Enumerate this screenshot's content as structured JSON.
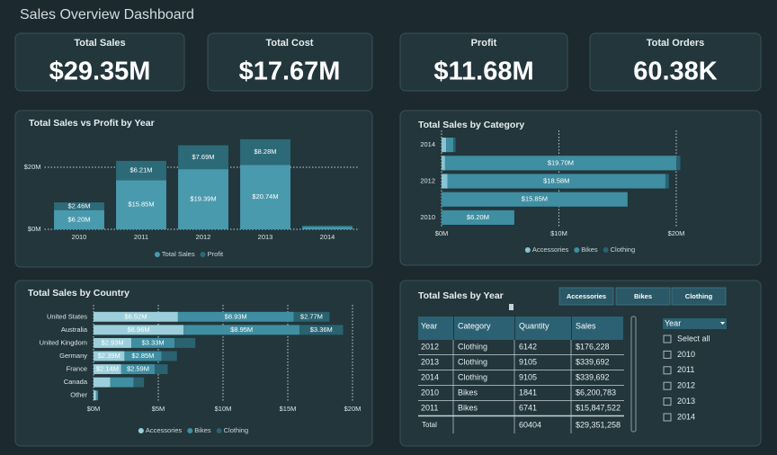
{
  "header": {
    "title": "Sales Overview Dashboard"
  },
  "kpis": [
    {
      "label": "Total Sales",
      "value": "$29.35M"
    },
    {
      "label": "Total Cost",
      "value": "$17.67M"
    },
    {
      "label": "Profit",
      "value": "$11.68M"
    },
    {
      "label": "Total Orders",
      "value": "60.38K"
    }
  ],
  "chart_data": [
    {
      "type": "bar",
      "title": "Total Sales vs Profit by Year",
      "categories": [
        "2010",
        "2011",
        "2012",
        "2013",
        "2014"
      ],
      "series": [
        {
          "name": "Total Sales",
          "color": "#4a9aae",
          "values": [
            6.2,
            15.85,
            19.39,
            20.74,
            0.8
          ],
          "value_labels": [
            "$6.20M",
            "$15.85M",
            "$19.39M",
            "$20.74M",
            null
          ]
        },
        {
          "name": "Profit",
          "color": "#2d6a78",
          "values": [
            2.46,
            6.21,
            7.69,
            8.28,
            0.4
          ],
          "value_labels": [
            "$2.46M",
            "$6.21M",
            "$7.69M",
            "$8.28M",
            null
          ]
        }
      ],
      "ylim": [
        0,
        30
      ],
      "yticks": [
        {
          "value": 0,
          "label": "$0M"
        },
        {
          "value": 20,
          "label": "$20M"
        }
      ],
      "stacked": true,
      "grid": true,
      "legend": "bottom"
    },
    {
      "type": "barh",
      "title": "Total Sales by Category",
      "categories": [
        "2014",
        null,
        "2012",
        null,
        "2010"
      ],
      "series": [
        {
          "name": "Accessories",
          "color": "#86c5d3",
          "values": [
            0.4,
            0.3,
            0.5,
            0,
            0
          ]
        },
        {
          "name": "Bikes",
          "color": "#3f8ea1",
          "values": [
            0.6,
            19.7,
            18.58,
            15.85,
            6.2
          ],
          "value_labels": [
            null,
            "$19.70M",
            "$18.58M",
            "$15.85M",
            "$6.20M"
          ]
        },
        {
          "name": "Clothing",
          "color": "#2a6270",
          "values": [
            0.2,
            0.35,
            0.3,
            0,
            0
          ]
        }
      ],
      "xlim": [
        0,
        21
      ],
      "xticks": [
        {
          "value": 0,
          "label": "$0M"
        },
        {
          "value": 10,
          "label": "$10M"
        },
        {
          "value": 20,
          "label": "$20M"
        }
      ],
      "stacked": true,
      "grid": true,
      "legend": "bottom"
    },
    {
      "type": "barh",
      "title": "Total Sales by Country",
      "categories": [
        "United States",
        "Australia",
        "United Kingdom",
        "Germany",
        "France",
        "Canada",
        "Other"
      ],
      "series": [
        {
          "name": "Accessories",
          "color": "#9ccfdb",
          "values": [
            6.52,
            6.96,
            2.93,
            2.39,
            2.14,
            1.3,
            0.2
          ],
          "value_labels": [
            "$6.52M",
            "$6.96M",
            "$2.93M",
            "$2.39M",
            "$2.14M",
            null,
            null
          ]
        },
        {
          "name": "Bikes",
          "color": "#3f8ea1",
          "values": [
            8.93,
            8.95,
            3.33,
            2.85,
            2.59,
            1.8,
            0.15
          ],
          "value_labels": [
            "$8.93M",
            "$8.95M",
            "$3.33M",
            "$2.85M",
            "$2.59M",
            null,
            null
          ]
        },
        {
          "name": "Clothing",
          "color": "#2a6270",
          "values": [
            2.77,
            3.36,
            1.6,
            1.2,
            1.0,
            0.8,
            0
          ],
          "value_labels": [
            "$2.77M",
            "$3.36M",
            null,
            null,
            null,
            null,
            null
          ]
        }
      ],
      "xlim": [
        0,
        20
      ],
      "xticks": [
        {
          "value": 0,
          "label": "$0M"
        },
        {
          "value": 5,
          "label": "$5M"
        },
        {
          "value": 10,
          "label": "$10M"
        },
        {
          "value": 15,
          "label": "$15M"
        },
        {
          "value": 20,
          "label": "$20M"
        }
      ],
      "stacked": true,
      "grid": true,
      "legend": "bottom"
    }
  ],
  "table": {
    "title": "Total Sales by Year",
    "buttons": [
      "Accessories",
      "Bikes",
      "Clothing"
    ],
    "columns": [
      "Year",
      "Category",
      "Quantity",
      "Sales"
    ],
    "rows": [
      [
        "2012",
        "Clothing",
        "6142",
        "$176,228"
      ],
      [
        "2013",
        "Clothing",
        "9105",
        "$339,692"
      ],
      [
        "2014",
        "Clothing",
        "9105",
        "$339,692"
      ],
      [
        "2010",
        "Bikes",
        "1841",
        "$6,200,783"
      ],
      [
        "2011",
        "Bikes",
        "6741",
        "$15,847,522"
      ]
    ],
    "total": {
      "label": "Total",
      "quantity": "60404",
      "sales": "$29,351,258"
    }
  },
  "slicer": {
    "title": "Year",
    "options": [
      "Select all",
      "2010",
      "2011",
      "2012",
      "2013",
      "2014"
    ]
  }
}
